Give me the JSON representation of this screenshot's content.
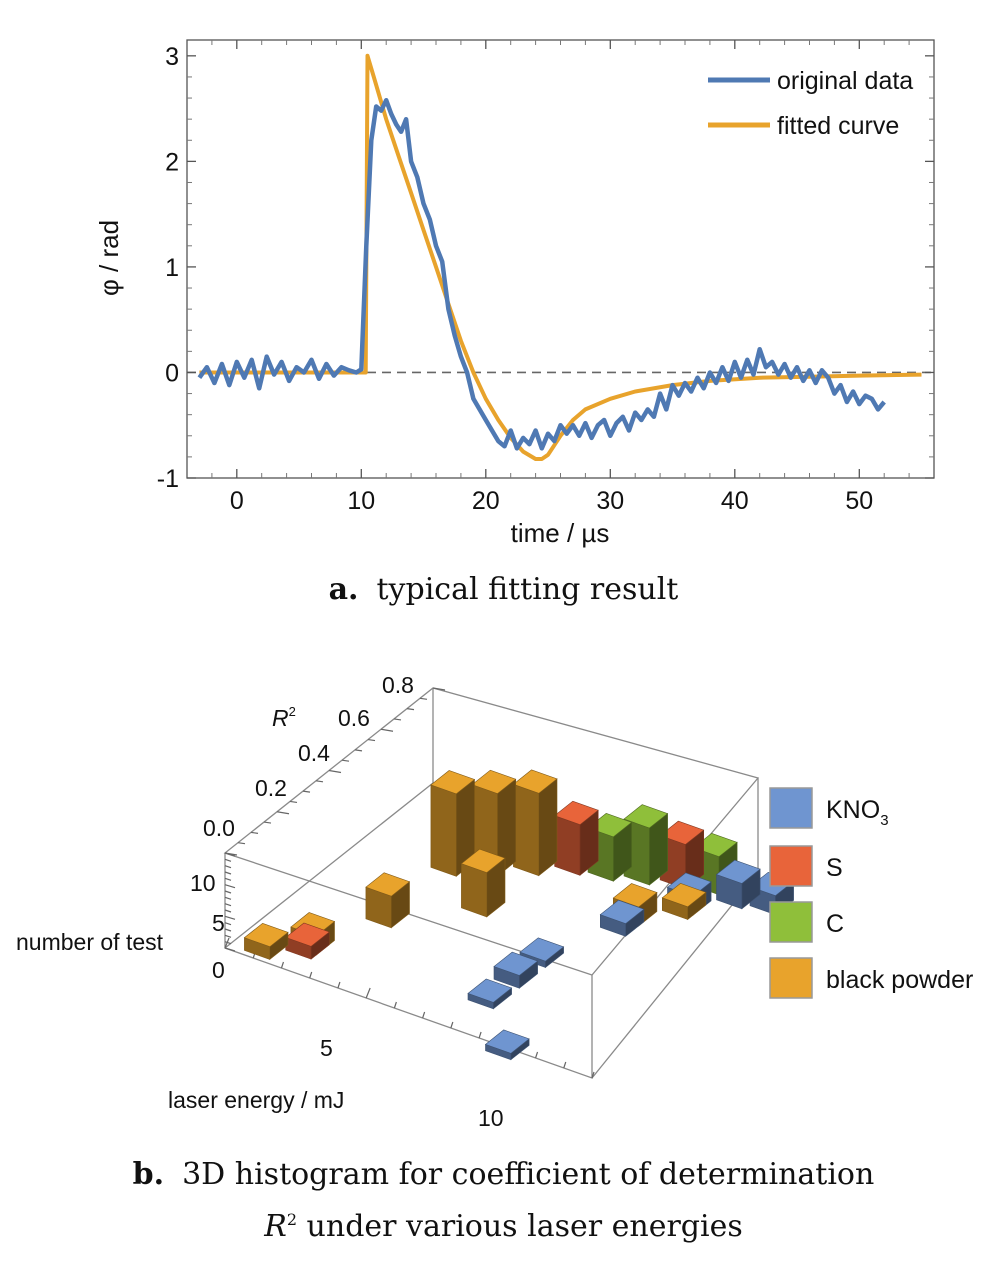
{
  "chart_data": [
    {
      "type": "line",
      "panel_caption_tag": "a.",
      "panel_caption": "typical fitting result",
      "xlabel": "time / µs",
      "ylabel": "φ / rad",
      "xlim": [
        -4,
        56
      ],
      "ylim": [
        -1,
        3.15
      ],
      "xticks": [
        "0",
        "10",
        "20",
        "30",
        "40",
        "50"
      ],
      "yticks": [
        "-1",
        "0",
        "1",
        "2",
        "3"
      ],
      "grid": false,
      "legend_position": "top-right",
      "reference_line_y": 0,
      "series": [
        {
          "name": "original data",
          "color": "#4f79b3",
          "x": [
            -3,
            -2.4,
            -1.8,
            -1.2,
            -0.6,
            0,
            0.6,
            1.2,
            1.8,
            2.4,
            3,
            3.6,
            4.2,
            4.8,
            5.4,
            6,
            6.6,
            7.2,
            7.8,
            8.4,
            9,
            9.6,
            10,
            10.4,
            10.8,
            11.2,
            11.6,
            12,
            12.4,
            12.8,
            13.2,
            13.6,
            14,
            14.5,
            15,
            15.5,
            16,
            16.5,
            17,
            17.5,
            18,
            18.5,
            19,
            19.5,
            20,
            20.5,
            21,
            21.5,
            22,
            22.5,
            23,
            23.5,
            24,
            24.5,
            25,
            25.5,
            26,
            26.5,
            27,
            27.5,
            28,
            28.5,
            29,
            29.5,
            30,
            30.5,
            31,
            31.5,
            32,
            32.5,
            33,
            33.5,
            34,
            34.5,
            35,
            35.5,
            36,
            36.5,
            37,
            37.5,
            38,
            38.5,
            39,
            39.5,
            40,
            40.5,
            41,
            41.5,
            42,
            42.5,
            43,
            43.5,
            44,
            44.5,
            45,
            45.5,
            46,
            46.5,
            47,
            47.5,
            48,
            48.5,
            49,
            49.5,
            50,
            50.5,
            51,
            51.5,
            52
          ],
          "y": [
            -0.05,
            0.05,
            -0.1,
            0.08,
            -0.12,
            0.1,
            -0.05,
            0.12,
            -0.15,
            0.15,
            -0.02,
            0.1,
            -0.08,
            0.05,
            0.0,
            0.12,
            -0.06,
            0.08,
            -0.03,
            0.05,
            0.02,
            0.0,
            0.03,
            1.2,
            2.2,
            2.52,
            2.48,
            2.58,
            2.45,
            2.35,
            2.28,
            2.4,
            2.0,
            1.85,
            1.6,
            1.45,
            1.2,
            1.05,
            0.6,
            0.35,
            0.15,
            0.0,
            -0.25,
            -0.35,
            -0.45,
            -0.55,
            -0.65,
            -0.7,
            -0.55,
            -0.72,
            -0.62,
            -0.68,
            -0.55,
            -0.72,
            -0.58,
            -0.65,
            -0.5,
            -0.58,
            -0.5,
            -0.6,
            -0.48,
            -0.62,
            -0.5,
            -0.45,
            -0.6,
            -0.48,
            -0.42,
            -0.55,
            -0.38,
            -0.45,
            -0.35,
            -0.42,
            -0.2,
            -0.35,
            -0.12,
            -0.22,
            -0.1,
            -0.18,
            -0.05,
            -0.15,
            0.0,
            -0.1,
            0.05,
            -0.08,
            0.1,
            -0.05,
            0.12,
            -0.02,
            0.22,
            0.05,
            0.1,
            -0.02,
            0.08,
            -0.05,
            0.05,
            -0.08,
            0.02,
            -0.1,
            0.02,
            -0.05,
            -0.2,
            -0.12,
            -0.28,
            -0.18,
            -0.3,
            -0.22,
            -0.25,
            -0.35,
            -0.28
          ]
        },
        {
          "name": "fitted curve",
          "color": "#e8a32c",
          "x": [
            -3,
            10,
            10.35,
            10.5,
            11,
            12,
            13,
            14,
            15,
            16,
            17,
            18,
            19,
            20,
            21,
            22,
            23,
            24,
            24.5,
            25,
            26,
            27,
            28,
            30,
            32,
            35,
            38,
            42,
            46,
            50,
            55
          ],
          "y": [
            0,
            0,
            0,
            3.0,
            2.8,
            2.4,
            2.05,
            1.7,
            1.35,
            1.0,
            0.65,
            0.3,
            0.0,
            -0.25,
            -0.45,
            -0.62,
            -0.75,
            -0.82,
            -0.82,
            -0.78,
            -0.6,
            -0.45,
            -0.35,
            -0.25,
            -0.18,
            -0.12,
            -0.08,
            -0.05,
            -0.04,
            -0.03,
            -0.02
          ]
        }
      ]
    },
    {
      "type": "3d-bar",
      "panel_caption_tag": "b.",
      "panel_caption_line1": "3D histogram for coefficient of determination",
      "panel_caption_line2_symbol": "R",
      "panel_caption_line2_sup": "2",
      "panel_caption_line2_rest": " under various laser energies",
      "axis_r2_label": "R",
      "axis_r2_label_sup": "2",
      "axis_count_label": "number of test",
      "axis_energy_label": "laser energy / mJ",
      "r2_ticks": [
        "0.0",
        "0.2",
        "0.4",
        "0.6",
        "0.8"
      ],
      "count_ticks": [
        "10",
        "5",
        "0"
      ],
      "energy_ticks": [
        "5",
        "10"
      ],
      "legend_position": "right",
      "legend": [
        {
          "label": "KNO",
          "sub": "3",
          "color": "#6f95d0"
        },
        {
          "label": "S",
          "sub": "",
          "color": "#e8643a"
        },
        {
          "label": "C",
          "sub": "",
          "color": "#8fbf3a"
        },
        {
          "label": "black powder",
          "sub": "",
          "color": "#e8a32c"
        }
      ],
      "bars": [
        {
          "series": "black powder",
          "energy": 1,
          "r2": 0.05,
          "count": 2
        },
        {
          "series": "S",
          "energy": 2,
          "r2": 0.1,
          "count": 2
        },
        {
          "series": "black powder",
          "energy": 2,
          "r2": 0.12,
          "count": 3
        },
        {
          "series": "black powder",
          "energy": 3,
          "r2": 0.3,
          "count": 5
        },
        {
          "series": "black powder",
          "energy": 3,
          "r2": 0.55,
          "count": 13
        },
        {
          "series": "black powder",
          "energy": 4,
          "r2": 0.6,
          "count": 13
        },
        {
          "series": "black powder",
          "energy": 5,
          "r2": 0.65,
          "count": 13
        },
        {
          "series": "black powder",
          "energy": 5,
          "r2": 0.45,
          "count": 7
        },
        {
          "series": "S",
          "energy": 6,
          "r2": 0.7,
          "count": 8
        },
        {
          "series": "C",
          "energy": 7,
          "r2": 0.72,
          "count": 7
        },
        {
          "series": "C",
          "energy": 8,
          "r2": 0.75,
          "count": 9
        },
        {
          "series": "S",
          "energy": 9,
          "r2": 0.78,
          "count": 7
        },
        {
          "series": "C",
          "energy": 10,
          "r2": 0.8,
          "count": 6
        },
        {
          "series": "black powder",
          "energy": 9,
          "r2": 0.6,
          "count": 3
        },
        {
          "series": "black powder",
          "energy": 10,
          "r2": 0.68,
          "count": 2
        },
        {
          "series": "KNO3",
          "energy": 11,
          "r2": 0.78,
          "count": 4
        },
        {
          "series": "KNO3",
          "energy": 12,
          "r2": 0.8,
          "count": 3
        },
        {
          "series": "KNO3",
          "energy": 10,
          "r2": 0.7,
          "count": 3
        },
        {
          "series": "KNO3",
          "energy": 9,
          "r2": 0.55,
          "count": 2
        },
        {
          "series": "KNO3",
          "energy": 8,
          "r2": 0.35,
          "count": 1
        },
        {
          "series": "KNO3",
          "energy": 8,
          "r2": 0.25,
          "count": 2
        },
        {
          "series": "KNO3",
          "energy": 8,
          "r2": 0.15,
          "count": 1
        },
        {
          "series": "KNO3",
          "energy": 10,
          "r2": 0.0,
          "count": 1
        }
      ]
    }
  ]
}
